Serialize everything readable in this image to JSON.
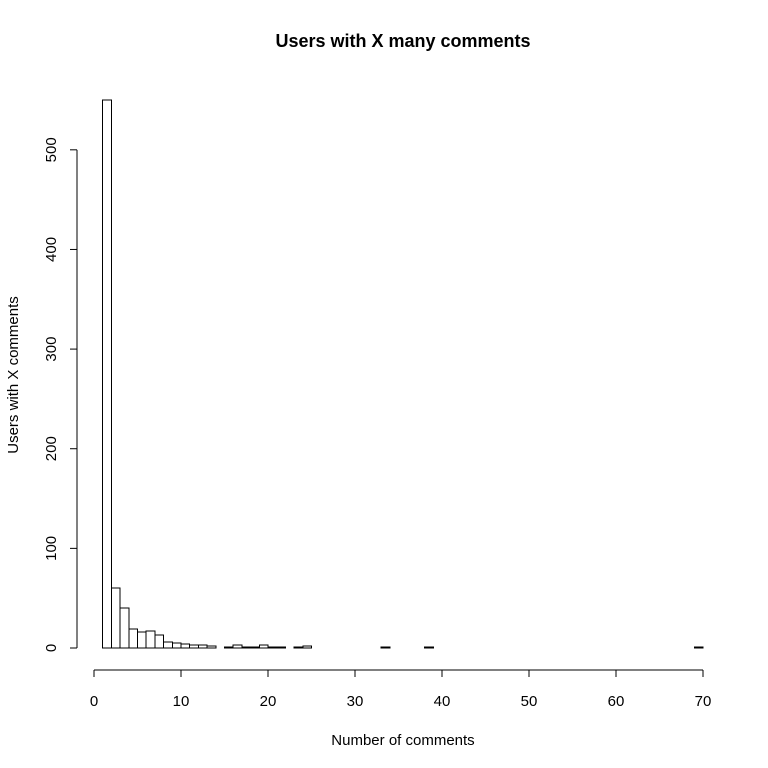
{
  "chart_data": {
    "type": "bar",
    "title": "Users with X many comments",
    "xlabel": "Number of comments",
    "ylabel": "Users with X comments",
    "xlim": [
      0,
      70
    ],
    "ylim": [
      0,
      550
    ],
    "x_ticks": [
      "0",
      "10",
      "20",
      "30",
      "40",
      "50",
      "60",
      "70"
    ],
    "y_ticks": [
      "0",
      "100",
      "200",
      "300",
      "400",
      "500"
    ],
    "bin_width": 1,
    "bin_starts": [
      1,
      2,
      3,
      4,
      5,
      6,
      7,
      8,
      9,
      10,
      11,
      12,
      13,
      14,
      15,
      16,
      17,
      18,
      19,
      20,
      21,
      22,
      23,
      24,
      25,
      26,
      27,
      28,
      29,
      30,
      31,
      32,
      33,
      34,
      35,
      36,
      37,
      38,
      39,
      40,
      41,
      42,
      43,
      44,
      45,
      46,
      47,
      48,
      49,
      50,
      51,
      52,
      53,
      54,
      55,
      56,
      57,
      58,
      59,
      60,
      61,
      62,
      63,
      64,
      65,
      66,
      67,
      68,
      69
    ],
    "values": [
      550,
      60,
      40,
      19,
      16,
      17,
      13,
      6,
      5,
      4,
      3,
      3,
      2,
      0,
      1,
      3,
      1,
      1,
      3,
      1,
      1,
      0,
      1,
      2,
      0,
      0,
      0,
      0,
      0,
      0,
      0,
      0,
      1,
      0,
      0,
      0,
      0,
      1,
      0,
      0,
      0,
      0,
      0,
      0,
      0,
      0,
      0,
      0,
      0,
      0,
      0,
      0,
      0,
      0,
      0,
      0,
      0,
      0,
      0,
      0,
      0,
      0,
      0,
      0,
      0,
      0,
      0,
      0,
      1
    ]
  }
}
